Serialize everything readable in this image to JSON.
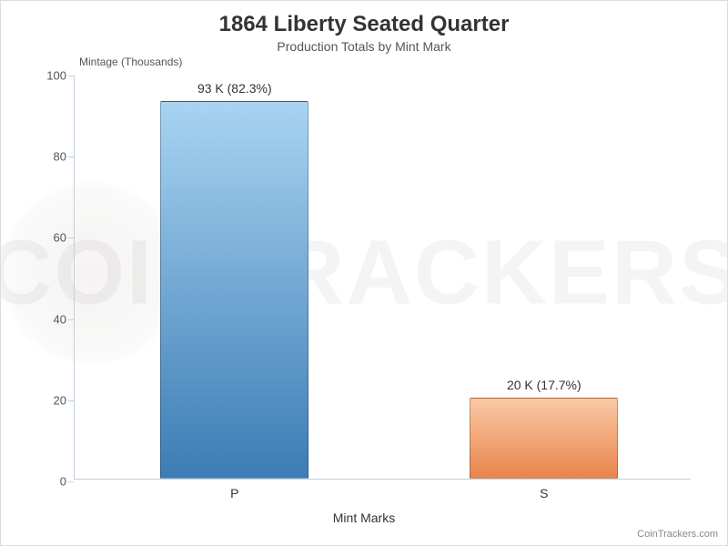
{
  "chart": {
    "type": "bar",
    "title": "1864 Liberty Seated Quarter",
    "subtitle": "Production Totals by Mint Mark",
    "title_fontsize": 24,
    "subtitle_fontsize": 14,
    "title_color": "#333333",
    "subtitle_color": "#555555",
    "background_color": "#ffffff",
    "border_color": "#dddddd",
    "watermark_text": "COINTRACKERS",
    "ylabel": "Mintage (Thousands)",
    "xlabel": "Mint Marks",
    "label_fontsize": 14,
    "ylabel_fontsize": 12,
    "ylim": [
      0,
      100
    ],
    "ytick_step": 20,
    "yticks": [
      0,
      20,
      40,
      60,
      80,
      100
    ],
    "axis_color": "#c0d0e0",
    "tick_label_color": "#555555",
    "categories": [
      "P",
      "S"
    ],
    "values": [
      93,
      20
    ],
    "bar_labels": [
      "93 K (82.3%)",
      "20 K (17.7%)"
    ],
    "bar_colors_top": [
      "#a8d4f2",
      "#fbc9a6"
    ],
    "bar_colors_bottom": [
      "#3c7cb4",
      "#e8854b"
    ],
    "bar_border_color": "rgba(0,0,0,0.25)",
    "bar_width_ratio": 0.48,
    "bar_positions": [
      0.26,
      0.76
    ],
    "credit": "CoinTrackers.com",
    "credit_color": "#888888"
  }
}
